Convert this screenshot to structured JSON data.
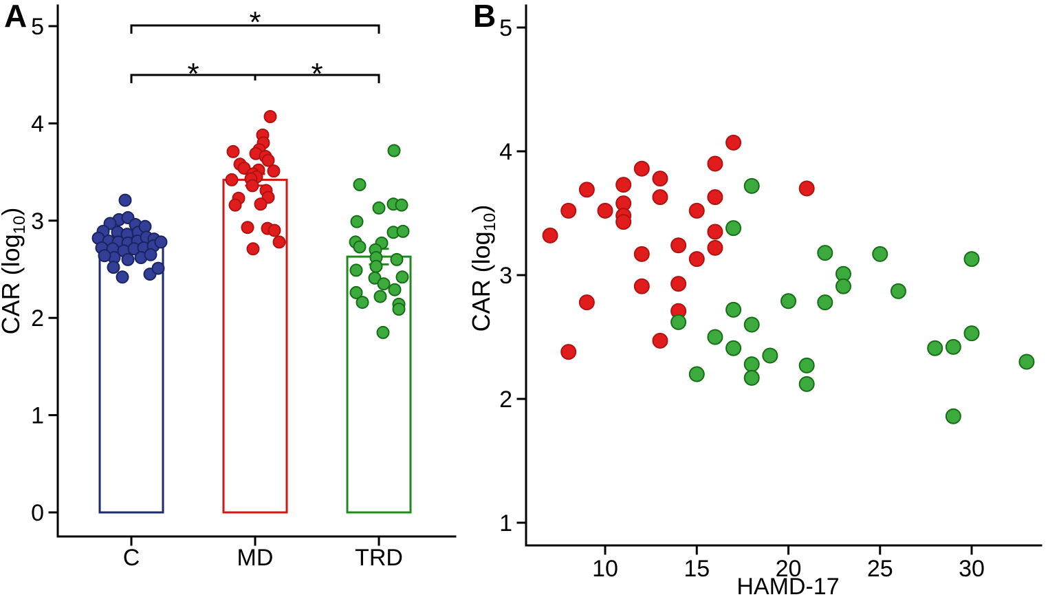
{
  "figure": {
    "panel_a_letter": "A",
    "panel_b_letter": "B",
    "ylabel_parts": {
      "main": "CAR (log",
      "sub": "10",
      "end": ")"
    },
    "colors": {
      "axis": "#000000",
      "control_fill": "#333f97",
      "control_stroke": "#1a2461",
      "control_bar": "#1c2a72",
      "md_fill": "#e01c1c",
      "md_stroke": "#b31111",
      "md_bar": "#d01616",
      "trd_fill": "#3caa3c",
      "trd_stroke": "#166e16",
      "trd_bar": "#1f8b1f"
    }
  },
  "chart_data": [
    {
      "id": "A",
      "type": "bar",
      "title": "",
      "ylabel": "CAR (log10)",
      "ylim": [
        0,
        5.2
      ],
      "yticks": [
        0,
        1,
        2,
        3,
        4,
        5
      ],
      "categories": [
        "C",
        "MD",
        "TRD"
      ],
      "groups": [
        {
          "label": "C",
          "fill": "#333f97",
          "stroke": "#1a2461",
          "bar_stroke": "#1c2a72",
          "mean": 2.77,
          "sem": 0.04,
          "points": [
            [
              -9,
              3.21
            ],
            [
              -18,
              3.01
            ],
            [
              -5,
              3.03
            ],
            [
              -31,
              2.97
            ],
            [
              6,
              2.96
            ],
            [
              -41,
              2.89
            ],
            [
              -20,
              2.88
            ],
            [
              -6,
              2.86
            ],
            [
              10,
              2.88
            ],
            [
              20,
              2.94
            ],
            [
              -48,
              2.82
            ],
            [
              -33,
              2.79
            ],
            [
              -19,
              2.78
            ],
            [
              -5,
              2.77
            ],
            [
              9,
              2.79
            ],
            [
              22,
              2.83
            ],
            [
              33,
              2.81
            ],
            [
              -43,
              2.72
            ],
            [
              -27,
              2.71
            ],
            [
              -11,
              2.69
            ],
            [
              4,
              2.71
            ],
            [
              18,
              2.72
            ],
            [
              32,
              2.74
            ],
            [
              43,
              2.78
            ],
            [
              -25,
              2.62
            ],
            [
              -5,
              2.6
            ],
            [
              14,
              2.62
            ],
            [
              28,
              2.65
            ],
            [
              -39,
              2.64
            ],
            [
              -26,
              2.52
            ],
            [
              -13,
              2.42
            ],
            [
              27,
              2.45
            ],
            [
              39,
              2.51
            ]
          ]
        },
        {
          "label": "MD",
          "fill": "#e01c1c",
          "stroke": "#b31111",
          "bar_stroke": "#d01616",
          "mean": 3.42,
          "sem": 0.06,
          "points": [
            [
              22,
              4.07
            ],
            [
              11,
              3.88
            ],
            [
              12,
              3.8
            ],
            [
              6,
              3.73
            ],
            [
              1,
              3.69
            ],
            [
              -32,
              3.71
            ],
            [
              15,
              3.66
            ],
            [
              19,
              3.62
            ],
            [
              -22,
              3.58
            ],
            [
              -16,
              3.54
            ],
            [
              5,
              3.52
            ],
            [
              27,
              3.51
            ],
            [
              -3,
              3.48
            ],
            [
              2,
              3.45
            ],
            [
              -34,
              3.42
            ],
            [
              -6,
              3.43
            ],
            [
              -4,
              3.36
            ],
            [
              16,
              3.31
            ],
            [
              19,
              3.24
            ],
            [
              -24,
              3.23
            ],
            [
              -29,
              3.16
            ],
            [
              8,
              3.17
            ],
            [
              -11,
              2.93
            ],
            [
              18,
              2.92
            ],
            [
              28,
              2.9
            ],
            [
              35,
              2.78
            ],
            [
              -3,
              2.71
            ]
          ]
        },
        {
          "label": "TRD",
          "fill": "#3caa3c",
          "stroke": "#166e16",
          "bar_stroke": "#1f8b1f",
          "mean": 2.63,
          "sem": 0.08,
          "points": [
            [
              22,
              3.72
            ],
            [
              -28,
              3.37
            ],
            [
              0,
              3.13
            ],
            [
              21,
              3.17
            ],
            [
              33,
              3.16
            ],
            [
              -32,
              2.99
            ],
            [
              21,
              2.88
            ],
            [
              35,
              2.89
            ],
            [
              -34,
              2.78
            ],
            [
              -28,
              2.73
            ],
            [
              4,
              2.77
            ],
            [
              -5,
              2.7
            ],
            [
              -4,
              2.62
            ],
            [
              26,
              2.6
            ],
            [
              -4,
              2.53
            ],
            [
              -33,
              2.49
            ],
            [
              -6,
              2.41
            ],
            [
              34,
              2.42
            ],
            [
              7,
              2.35
            ],
            [
              23,
              2.29
            ],
            [
              -33,
              2.26
            ],
            [
              2,
              2.22
            ],
            [
              -24,
              2.16
            ],
            [
              29,
              2.14
            ],
            [
              29,
              2.09
            ],
            [
              6,
              1.85
            ]
          ]
        }
      ],
      "significance": [
        {
          "a": "C",
          "b": "TRD",
          "row": 0,
          "label": "*"
        },
        {
          "a": "C",
          "b": "MD",
          "row": 1,
          "label": "*"
        },
        {
          "a": "MD",
          "b": "TRD",
          "row": 1,
          "label": "*"
        }
      ]
    },
    {
      "id": "B",
      "type": "scatter",
      "title": "",
      "xlabel": "HAMD-17",
      "ylabel": "CAR (log10)",
      "xlim": [
        6.5,
        34.5
      ],
      "ylim": [
        0.85,
        5.1
      ],
      "xticks": [
        10,
        15,
        20,
        25,
        30
      ],
      "yticks": [
        1,
        2,
        3,
        4,
        5
      ],
      "series": [
        {
          "name": "MD",
          "fill": "#e01c1c",
          "stroke": "#b31111",
          "points": [
            [
              7,
              3.32
            ],
            [
              8,
              3.52
            ],
            [
              8,
              2.38
            ],
            [
              9,
              3.69
            ],
            [
              9,
              2.78
            ],
            [
              10,
              3.52
            ],
            [
              11,
              3.73
            ],
            [
              11,
              3.58
            ],
            [
              11,
              3.48
            ],
            [
              11,
              3.43
            ],
            [
              12,
              3.86
            ],
            [
              12,
              3.17
            ],
            [
              12,
              2.91
            ],
            [
              13,
              3.78
            ],
            [
              13,
              3.63
            ],
            [
              13,
              2.47
            ],
            [
              14,
              3.24
            ],
            [
              14,
              2.93
            ],
            [
              14,
              2.71
            ],
            [
              15,
              3.52
            ],
            [
              15,
              3.13
            ],
            [
              16,
              3.9
            ],
            [
              16,
              3.63
            ],
            [
              16,
              3.35
            ],
            [
              16,
              3.22
            ],
            [
              17,
              4.07
            ],
            [
              21,
              3.7
            ]
          ]
        },
        {
          "name": "TRD",
          "fill": "#3caa3c",
          "stroke": "#166e16",
          "points": [
            [
              14,
              2.62
            ],
            [
              15,
              2.2
            ],
            [
              16,
              2.5
            ],
            [
              17,
              3.38
            ],
            [
              17,
              2.72
            ],
            [
              17,
              2.41
            ],
            [
              18,
              3.72
            ],
            [
              18,
              2.6
            ],
            [
              18,
              2.28
            ],
            [
              18,
              2.17
            ],
            [
              19,
              2.35
            ],
            [
              20,
              2.79
            ],
            [
              21,
              2.27
            ],
            [
              21,
              2.12
            ],
            [
              22,
              3.18
            ],
            [
              22,
              2.78
            ],
            [
              23,
              3.01
            ],
            [
              23,
              2.91
            ],
            [
              25,
              3.17
            ],
            [
              26,
              2.87
            ],
            [
              28,
              2.41
            ],
            [
              29,
              2.42
            ],
            [
              29,
              1.86
            ],
            [
              30,
              3.13
            ],
            [
              30,
              2.53
            ],
            [
              33,
              2.3
            ]
          ]
        }
      ]
    }
  ]
}
